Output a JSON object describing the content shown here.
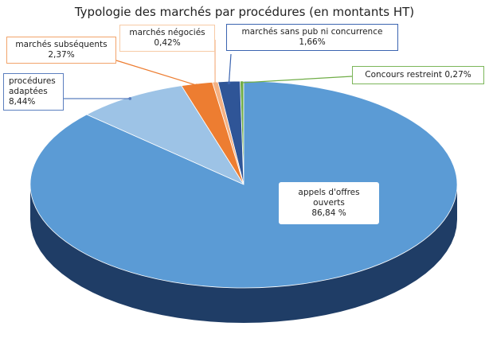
{
  "chart_data": {
    "type": "pie",
    "title": "Typologie des marchés par procédures (en montants HT)",
    "slices": [
      {
        "label": "appels d'offres ouverts",
        "value": 86.84,
        "display": "86,84 %",
        "color": "#5b9bd5"
      },
      {
        "label": "procédures adaptées",
        "value": 8.44,
        "display": "8,44%",
        "color": "#9dc3e6"
      },
      {
        "label": "marchés subséquents",
        "value": 2.37,
        "display": "2,37%",
        "color": "#ed7d31"
      },
      {
        "label": "marchés négociés",
        "value": 0.42,
        "display": "0,42%",
        "color": "#f4b183"
      },
      {
        "label": "marchés sans pub ni concurrence",
        "value": 1.66,
        "display": "1,66%",
        "color": "#2f5597"
      },
      {
        "label": "Concours restreint",
        "value": 0.27,
        "display": "0,27%",
        "color": "#70ad47"
      }
    ],
    "legend": "none",
    "labels": "callouts"
  }
}
